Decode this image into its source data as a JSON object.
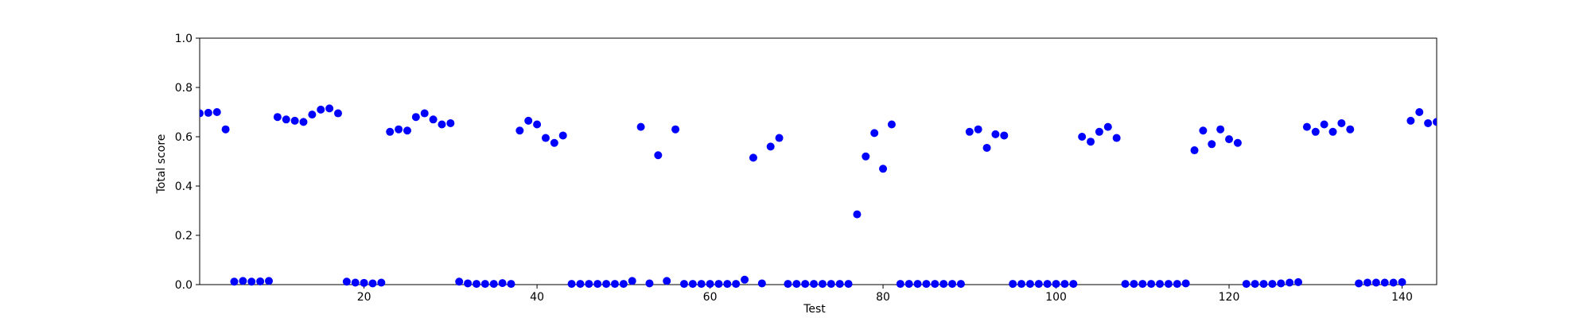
{
  "chart_data": {
    "type": "scatter",
    "title": "",
    "xlabel": "Test",
    "ylabel": "Total score",
    "xlim": [
      1,
      144
    ],
    "ylim": [
      0.0,
      1.0
    ],
    "xticks": [
      20,
      40,
      60,
      80,
      100,
      120,
      140
    ],
    "yticks": [
      0.0,
      0.2,
      0.4,
      0.6,
      0.8,
      1.0
    ],
    "xtick_labels": [
      "20",
      "40",
      "60",
      "80",
      "100",
      "120",
      "140"
    ],
    "ytick_labels": [
      "0.0",
      "0.2",
      "0.4",
      "0.6",
      "0.8",
      "1.0"
    ],
    "grid": false,
    "legend": "none",
    "marker_color": "#0000ff",
    "series": [
      {
        "x": [
          1,
          2,
          3,
          4,
          5,
          6,
          7,
          8,
          9,
          10,
          11,
          12,
          13,
          14,
          15,
          16,
          17,
          18,
          19,
          20,
          21,
          22,
          23,
          24,
          25,
          26,
          27,
          28,
          29,
          30,
          31,
          32,
          33,
          34,
          35,
          36,
          37,
          38,
          39,
          40,
          41,
          42,
          43,
          44,
          45,
          46,
          47,
          48,
          49,
          50,
          51,
          52,
          53,
          54,
          55,
          56,
          57,
          58,
          59,
          60,
          61,
          62,
          63,
          64,
          65,
          66,
          67,
          68,
          69,
          70,
          71,
          72,
          73,
          74,
          75,
          76,
          77,
          78,
          79,
          80,
          81,
          82,
          83,
          84,
          85,
          86,
          87,
          88,
          89,
          90,
          91,
          92,
          93,
          94,
          95,
          96,
          97,
          98,
          99,
          100,
          101,
          102,
          103,
          104,
          105,
          106,
          107,
          108,
          109,
          110,
          111,
          112,
          113,
          114,
          115,
          116,
          117,
          118,
          119,
          120,
          121,
          122,
          123,
          124,
          125,
          126,
          127,
          128,
          129,
          130,
          131,
          132,
          133,
          134,
          135,
          136,
          137,
          138,
          139,
          140,
          141,
          142,
          143,
          144
        ],
        "y": [
          0.695,
          0.697,
          0.7,
          0.63,
          0.012,
          0.015,
          0.012,
          0.013,
          0.015,
          0.68,
          0.67,
          0.665,
          0.66,
          0.69,
          0.71,
          0.715,
          0.695,
          0.012,
          0.008,
          0.007,
          0.005,
          0.008,
          0.62,
          0.63,
          0.625,
          0.68,
          0.695,
          0.67,
          0.65,
          0.655,
          0.012,
          0.005,
          0.003,
          0.003,
          0.003,
          0.006,
          0.003,
          0.625,
          0.665,
          0.65,
          0.595,
          0.575,
          0.605,
          0.003,
          0.003,
          0.003,
          0.003,
          0.003,
          0.003,
          0.003,
          0.015,
          0.64,
          0.005,
          0.525,
          0.015,
          0.63,
          0.003,
          0.003,
          0.003,
          0.003,
          0.003,
          0.003,
          0.003,
          0.02,
          0.515,
          0.005,
          0.56,
          0.595,
          0.003,
          0.003,
          0.003,
          0.003,
          0.003,
          0.003,
          0.003,
          0.003,
          0.285,
          0.52,
          0.615,
          0.47,
          0.65,
          0.003,
          0.003,
          0.003,
          0.003,
          0.003,
          0.003,
          0.003,
          0.003,
          0.62,
          0.63,
          0.555,
          0.61,
          0.605,
          0.003,
          0.003,
          0.003,
          0.003,
          0.003,
          0.003,
          0.003,
          0.003,
          0.6,
          0.58,
          0.62,
          0.64,
          0.595,
          0.003,
          0.003,
          0.003,
          0.003,
          0.003,
          0.003,
          0.003,
          0.005,
          0.545,
          0.625,
          0.57,
          0.63,
          0.59,
          0.575,
          0.003,
          0.003,
          0.003,
          0.003,
          0.005,
          0.008,
          0.01,
          0.64,
          0.62,
          0.65,
          0.62,
          0.655,
          0.63,
          0.005,
          0.008,
          0.008,
          0.008,
          0.008,
          0.01,
          0.665,
          0.7,
          0.655,
          0.66
        ]
      }
    ]
  }
}
